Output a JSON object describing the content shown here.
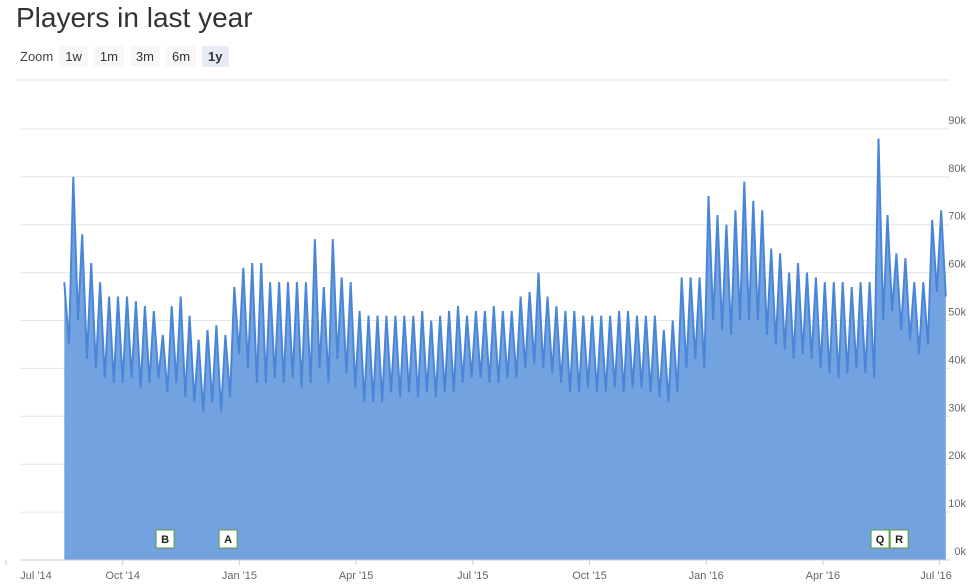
{
  "chart_data": {
    "type": "area",
    "title": "Players in last year",
    "zoom": {
      "label": "Zoom",
      "buttons": [
        "1w",
        "1m",
        "3m",
        "6m",
        "1y"
      ],
      "selected": 4
    },
    "color": "#73a2e0",
    "line_color": "#4a86d8",
    "grid": true,
    "xlim": [
      0,
      24.3
    ],
    "ylim": [
      0,
      100
    ],
    "xticks": [
      {
        "value": 0,
        "label": "Jul '14"
      },
      {
        "value": 3,
        "label": "Oct '14"
      },
      {
        "value": 6,
        "label": "Jan '15"
      },
      {
        "value": 9,
        "label": "Apr '15"
      },
      {
        "value": 12,
        "label": "Jul '15"
      },
      {
        "value": 15,
        "label": "Oct '15"
      },
      {
        "value": 18,
        "label": "Jan '16"
      },
      {
        "value": 21,
        "label": "Apr '16"
      },
      {
        "value": 24,
        "label": "Jul '16"
      }
    ],
    "yticks": [
      {
        "value": 0,
        "label": "0k"
      },
      {
        "value": 10,
        "label": "10k"
      },
      {
        "value": 20,
        "label": "20k"
      },
      {
        "value": 30,
        "label": "30k"
      },
      {
        "value": 40,
        "label": "40k"
      },
      {
        "value": 50,
        "label": "50k"
      },
      {
        "value": 60,
        "label": "60k"
      },
      {
        "value": 70,
        "label": "70k"
      },
      {
        "value": 80,
        "label": "80k"
      },
      {
        "value": 90,
        "label": "90k"
      }
    ],
    "flags": [
      {
        "x": 4.09,
        "label": "B"
      },
      {
        "x": 5.71,
        "label": "A"
      },
      {
        "x": 22.47,
        "label": "Q"
      },
      {
        "x": 22.96,
        "label": "R"
      }
    ],
    "x": [
      1.5,
      1.62,
      1.73,
      1.85,
      1.96,
      2.08,
      2.19,
      2.31,
      2.42,
      2.54,
      2.65,
      2.77,
      2.88,
      3,
      3.11,
      3.23,
      3.34,
      3.46,
      3.57,
      3.69,
      3.8,
      3.92,
      4.03,
      4.15,
      4.26,
      4.38,
      4.49,
      4.61,
      4.72,
      4.84,
      4.95,
      5.07,
      5.18,
      5.3,
      5.41,
      5.53,
      5.64,
      5.76,
      5.87,
      5.99,
      6.1,
      6.22,
      6.33,
      6.45,
      6.56,
      6.68,
      6.79,
      6.91,
      7.02,
      7.14,
      7.25,
      7.37,
      7.48,
      7.6,
      7.71,
      7.83,
      7.94,
      8.06,
      8.17,
      8.29,
      8.4,
      8.52,
      8.63,
      8.75,
      8.86,
      8.98,
      9.09,
      9.21,
      9.32,
      9.44,
      9.55,
      9.67,
      9.78,
      9.9,
      10.01,
      10.13,
      10.24,
      10.36,
      10.47,
      10.59,
      10.7,
      10.82,
      10.93,
      11.05,
      11.16,
      11.28,
      11.39,
      11.51,
      11.62,
      11.74,
      11.85,
      11.97,
      12.08,
      12.2,
      12.31,
      12.43,
      12.54,
      12.66,
      12.77,
      12.89,
      13,
      13.12,
      13.23,
      13.35,
      13.46,
      13.58,
      13.69,
      13.81,
      13.92,
      14.04,
      14.15,
      14.27,
      14.38,
      14.5,
      14.61,
      14.73,
      14.84,
      14.96,
      15.07,
      15.19,
      15.3,
      15.42,
      15.53,
      15.65,
      15.76,
      15.88,
      15.99,
      16.11,
      16.22,
      16.34,
      16.45,
      16.57,
      16.68,
      16.8,
      16.91,
      17.03,
      17.14,
      17.26,
      17.37,
      17.49,
      17.6,
      17.72,
      17.83,
      17.95,
      18.06,
      18.18,
      18.29,
      18.41,
      18.52,
      18.64,
      18.75,
      18.87,
      18.98,
      19.1,
      19.21,
      19.33,
      19.44,
      19.56,
      19.67,
      19.79,
      19.9,
      20.02,
      20.13,
      20.25,
      20.36,
      20.48,
      20.59,
      20.71,
      20.82,
      20.94,
      21.05,
      21.17,
      21.28,
      21.4,
      21.51,
      21.63,
      21.74,
      21.86,
      21.97,
      22.09,
      22.2,
      22.32,
      22.43,
      22.55,
      22.66,
      22.78,
      22.89,
      23.01,
      23.12,
      23.24,
      23.35,
      23.47,
      23.58,
      23.7,
      23.81,
      23.93,
      24.04,
      24.16
    ],
    "values": [
      58,
      45,
      80,
      50,
      68,
      42,
      62,
      40,
      58,
      38,
      55,
      37,
      55,
      37,
      55,
      38,
      54,
      36,
      53,
      37,
      52,
      38,
      47,
      35,
      53,
      37,
      55,
      34,
      51,
      33,
      46,
      31,
      48,
      33,
      49,
      31,
      47,
      34,
      57,
      43,
      61,
      40,
      62,
      37,
      62,
      37,
      58,
      38,
      58,
      37,
      58,
      38,
      58,
      36,
      58,
      37,
      67,
      40,
      57,
      37,
      67,
      42,
      59,
      39,
      58,
      36,
      52,
      33,
      51,
      33,
      51,
      33,
      51,
      35,
      51,
      34,
      51,
      35,
      51,
      34,
      52,
      35,
      50,
      34,
      51,
      35,
      52,
      35,
      53,
      37,
      51,
      38,
      52,
      38,
      52,
      37,
      53,
      37,
      52,
      38,
      52,
      38,
      55,
      40,
      56,
      41,
      60,
      40,
      55,
      39,
      53,
      37,
      52,
      35,
      52,
      35,
      51,
      36,
      51,
      35,
      51,
      35,
      51,
      36,
      52,
      35,
      52,
      36,
      51,
      36,
      51,
      35,
      51,
      34,
      48,
      33,
      50,
      35,
      59,
      40,
      59,
      42,
      59,
      40,
      76,
      50,
      72,
      48,
      70,
      47,
      73,
      50,
      79,
      50,
      75,
      50,
      73,
      47,
      65,
      45,
      64,
      44,
      60,
      42,
      62,
      43,
      60,
      42,
      59,
      40,
      58,
      39,
      58,
      38,
      58,
      39,
      57,
      40,
      58,
      39,
      58,
      38,
      88,
      50,
      72,
      52,
      64,
      48,
      63,
      46,
      58,
      43,
      58,
      45,
      71,
      56,
      73,
      55
    ]
  }
}
